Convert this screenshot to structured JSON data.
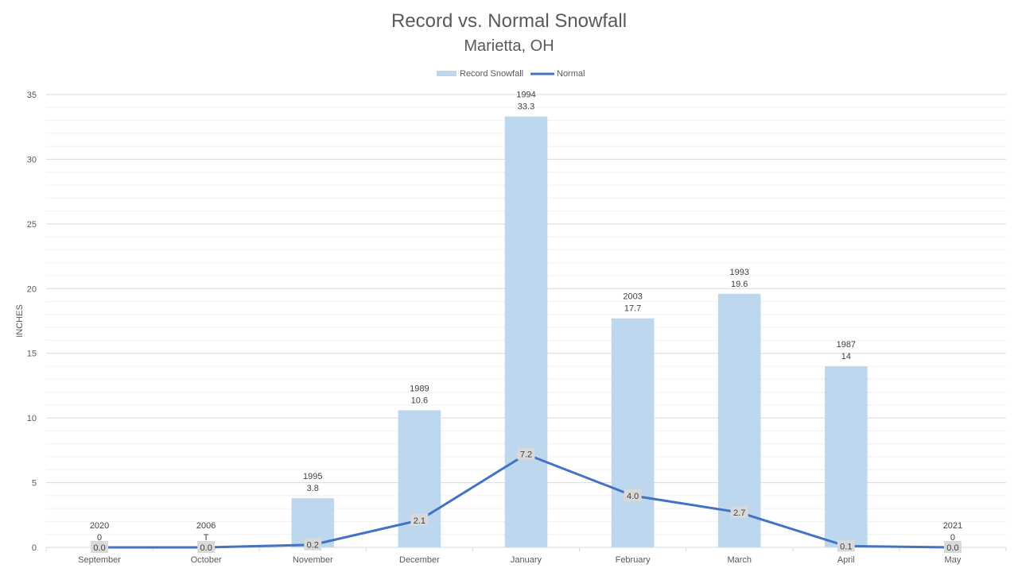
{
  "chart_data": {
    "type": "bar",
    "title": "Record vs. Normal Snowfall",
    "subtitle": "Marietta, OH",
    "ylabel": "INCHES",
    "xlabel": "",
    "ylim": [
      0,
      35
    ],
    "yticks": [
      0,
      5,
      10,
      15,
      20,
      25,
      30,
      35
    ],
    "grid": true,
    "legend_position": "top",
    "categories": [
      "September",
      "October",
      "November",
      "December",
      "January",
      "February",
      "March",
      "April",
      "May"
    ],
    "series": [
      {
        "name": "Record Snowfall",
        "type": "bar",
        "color": "#bdd7ee",
        "values": [
          0,
          0,
          3.8,
          10.6,
          33.3,
          17.7,
          19.6,
          14,
          0
        ],
        "year_labels": [
          "2020",
          "2006",
          "1995",
          "1989",
          "1994",
          "2003",
          "1993",
          "1987",
          "2021"
        ],
        "value_labels": [
          "0",
          "T",
          "3.8",
          "10.6",
          "33.3",
          "17.7",
          "19.6",
          "14",
          "0"
        ]
      },
      {
        "name": "Normal",
        "type": "line",
        "color": "#4472c4",
        "values": [
          0.0,
          0.0,
          0.2,
          2.1,
          7.2,
          4.0,
          2.7,
          0.1,
          0.0
        ],
        "value_labels": [
          "0.0",
          "0.0",
          "0.2",
          "2.1",
          "7.2",
          "4.0",
          "2.7",
          "0.1",
          "0.0"
        ]
      }
    ]
  }
}
